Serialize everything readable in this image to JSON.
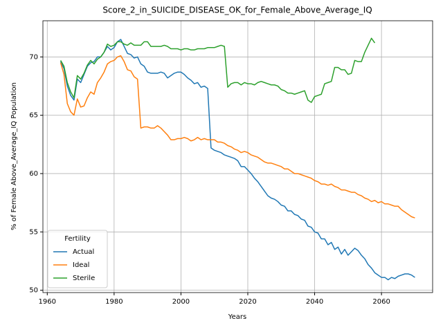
{
  "chart_data": {
    "type": "line",
    "title": "Score_2_in_SUICIDE_DISEASE_OK_for_Female_Above_Average_IQ",
    "x_label": "Years",
    "y_label": "% of Female Above_Average_IQ Population",
    "x": [
      1964,
      1965,
      1966,
      1967,
      1968,
      1969,
      1970,
      1971,
      1972,
      1973,
      1974,
      1975,
      1976,
      1977,
      1978,
      1979,
      1980,
      1981,
      1982,
      1983,
      1984,
      1985,
      1986,
      1987,
      1988,
      1989,
      1990,
      1991,
      1992,
      1993,
      1994,
      1995,
      1996,
      1997,
      1998,
      1999,
      2000,
      2001,
      2002,
      2003,
      2004,
      2005,
      2006,
      2007,
      2008,
      2009,
      2010,
      2011,
      2012,
      2013,
      2014,
      2015,
      2016,
      2017,
      2018,
      2019,
      2020,
      2021,
      2022,
      2023,
      2024,
      2025,
      2026,
      2027,
      2028,
      2029,
      2030,
      2031,
      2032,
      2033,
      2034,
      2035,
      2036,
      2037,
      2038,
      2039,
      2040,
      2041,
      2042,
      2043,
      2044,
      2045,
      2046,
      2047,
      2048,
      2049,
      2050,
      2051,
      2052,
      2053,
      2054,
      2055,
      2056,
      2057,
      2058,
      2059,
      2060,
      2061,
      2062,
      2063,
      2064,
      2065,
      2066,
      2067,
      2068,
      2069,
      2070
    ],
    "series": [
      {
        "name": "Actual",
        "color": "#1f77b4",
        "values": [
          69.6,
          69.0,
          67.5,
          66.7,
          66.3,
          68.1,
          67.8,
          68.5,
          69.2,
          69.5,
          69.6,
          70.0,
          70.0,
          70.4,
          70.9,
          70.6,
          70.8,
          71.3,
          71.5,
          70.9,
          70.3,
          70.2,
          69.9,
          70.0,
          69.4,
          69.2,
          68.7,
          68.6,
          68.6,
          68.6,
          68.7,
          68.6,
          68.2,
          68.4,
          68.6,
          68.7,
          68.7,
          68.5,
          68.2,
          68.0,
          67.7,
          67.8,
          67.4,
          67.5,
          67.3,
          62.2,
          62.0,
          61.9,
          61.8,
          61.6,
          61.5,
          61.4,
          61.3,
          61.1,
          60.6,
          60.6,
          60.3,
          60.0,
          59.6,
          59.3,
          58.9,
          58.5,
          58.1,
          57.9,
          57.8,
          57.6,
          57.3,
          57.2,
          56.8,
          56.8,
          56.5,
          56.4,
          56.1,
          56.0,
          55.5,
          55.4,
          55.0,
          54.9,
          54.4,
          54.4,
          53.9,
          54.1,
          53.5,
          53.7,
          53.1,
          53.5,
          53.0,
          53.3,
          53.6,
          53.4,
          53.0,
          52.7,
          52.2,
          51.9,
          51.5,
          51.3,
          51.1,
          51.1,
          50.9,
          51.1,
          51.0,
          51.2,
          51.3,
          51.4,
          51.4,
          51.3,
          51.1
        ]
      },
      {
        "name": "Ideal",
        "color": "#ff7f0e",
        "values": [
          69.5,
          68.5,
          66.0,
          65.3,
          65.0,
          66.4,
          65.7,
          65.8,
          66.5,
          67.0,
          66.8,
          67.8,
          68.2,
          68.7,
          69.4,
          69.6,
          69.7,
          70.0,
          70.1,
          69.6,
          68.9,
          68.8,
          68.3,
          68.1,
          63.9,
          64.0,
          64.0,
          63.9,
          63.9,
          64.1,
          63.9,
          63.6,
          63.3,
          62.9,
          62.9,
          63.0,
          63.0,
          63.1,
          63.0,
          62.8,
          62.9,
          63.1,
          62.9,
          63.0,
          62.9,
          62.9,
          62.9,
          62.7,
          62.7,
          62.6,
          62.4,
          62.3,
          62.1,
          62.0,
          61.8,
          61.9,
          61.8,
          61.6,
          61.5,
          61.4,
          61.2,
          61.0,
          60.9,
          60.9,
          60.8,
          60.7,
          60.6,
          60.4,
          60.4,
          60.2,
          60.0,
          60.0,
          59.9,
          59.8,
          59.7,
          59.6,
          59.4,
          59.3,
          59.1,
          59.1,
          59.0,
          59.1,
          58.9,
          58.8,
          58.6,
          58.6,
          58.5,
          58.4,
          58.4,
          58.2,
          58.1,
          57.9,
          57.8,
          57.6,
          57.7,
          57.5,
          57.6,
          57.4,
          57.4,
          57.3,
          57.2,
          57.2,
          56.9,
          56.7,
          56.5,
          56.3,
          56.2
        ]
      },
      {
        "name": "Sterile",
        "color": "#2ca02c",
        "values": [
          69.7,
          69.2,
          67.8,
          67.0,
          66.5,
          68.4,
          68.1,
          68.6,
          69.3,
          69.7,
          69.4,
          69.8,
          70.0,
          70.4,
          71.1,
          70.9,
          71.0,
          71.3,
          71.3,
          71.1,
          71.0,
          71.2,
          71.0,
          71.0,
          71.0,
          71.3,
          71.3,
          70.9,
          70.9,
          70.9,
          70.9,
          71.0,
          70.9,
          70.7,
          70.7,
          70.7,
          70.6,
          70.7,
          70.7,
          70.6,
          70.6,
          70.7,
          70.7,
          70.7,
          70.8,
          70.8,
          70.8,
          70.9,
          71.0,
          70.9,
          67.4,
          67.7,
          67.8,
          67.8,
          67.6,
          67.8,
          67.7,
          67.7,
          67.6,
          67.8,
          67.9,
          67.8,
          67.7,
          67.6,
          67.6,
          67.5,
          67.2,
          67.1,
          66.9,
          66.9,
          66.8,
          66.9,
          67.0,
          67.1,
          66.3,
          66.1,
          66.6,
          66.7,
          66.8,
          67.7,
          67.8,
          67.9,
          69.1,
          69.1,
          68.9,
          68.9,
          68.5,
          68.6,
          69.7,
          69.6,
          69.6,
          70.4,
          71.0,
          71.6,
          71.2,
          null,
          null,
          null,
          null,
          null,
          null,
          null,
          null,
          null,
          null,
          null,
          null
        ]
      }
    ],
    "legend_title": "Fertility",
    "legend": "lower left",
    "xlim": [
      1958.7,
      2075.3
    ],
    "xticks": [
      1960,
      1980,
      2000,
      2020,
      2040,
      2060
    ],
    "ylim": [
      49.8,
      73.1
    ],
    "yticks": [
      50,
      55,
      60,
      65,
      70
    ],
    "grid": true
  }
}
